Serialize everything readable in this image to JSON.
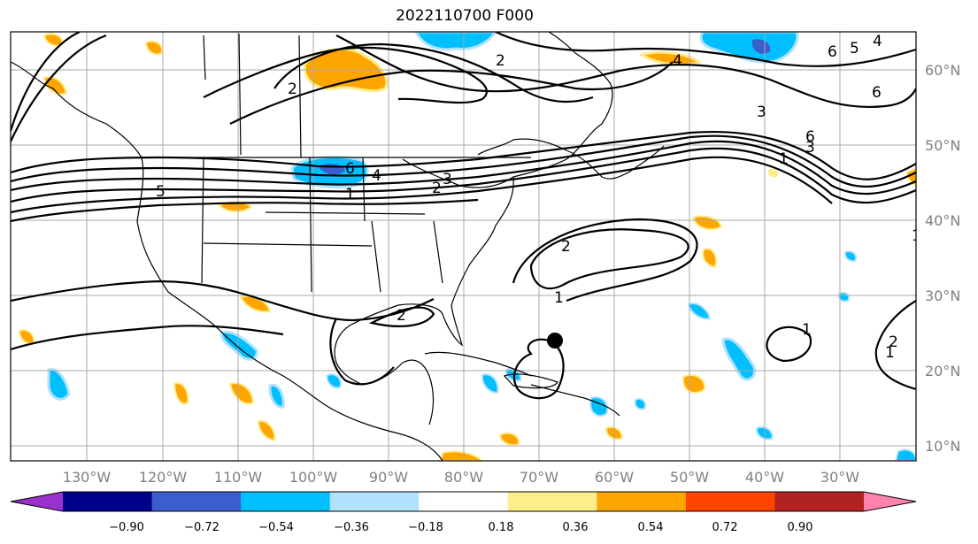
{
  "title": "2022110700 F000",
  "longitude_labels": [
    "130°W",
    "120°W",
    "110°W",
    "100°W",
    "90°W",
    "80°W",
    "70°W",
    "60°W",
    "50°W",
    "40°W",
    "30°W"
  ],
  "latitude_labels": [
    "60°N",
    "50°N",
    "40°N",
    "30°N",
    "20°N",
    "10°N"
  ],
  "colorbar": {
    "ticks": [
      "−0.90",
      "−0.72",
      "−0.54",
      "−0.36",
      "−0.18",
      "0.18",
      "0.36",
      "0.54",
      "0.72",
      "0.90"
    ],
    "colors": [
      "#9932cc",
      "#00008b",
      "#3a5fcd",
      "#00bfff",
      "#b0e2ff",
      "#ffffff",
      "#ffec8b",
      "#ffa500",
      "#ff4500",
      "#b22222",
      "#ff82ab"
    ]
  },
  "contour_labels": [
    "2",
    "4",
    "6",
    "5",
    "1",
    "3",
    "2",
    "4",
    "6",
    "5",
    "3",
    "6",
    "1",
    "6",
    "4",
    "3",
    "2",
    "1",
    "2",
    "1",
    "2",
    "1",
    "2",
    "1"
  ],
  "marker": {
    "name": "storm-center",
    "lat": 24,
    "lon": -67
  }
}
